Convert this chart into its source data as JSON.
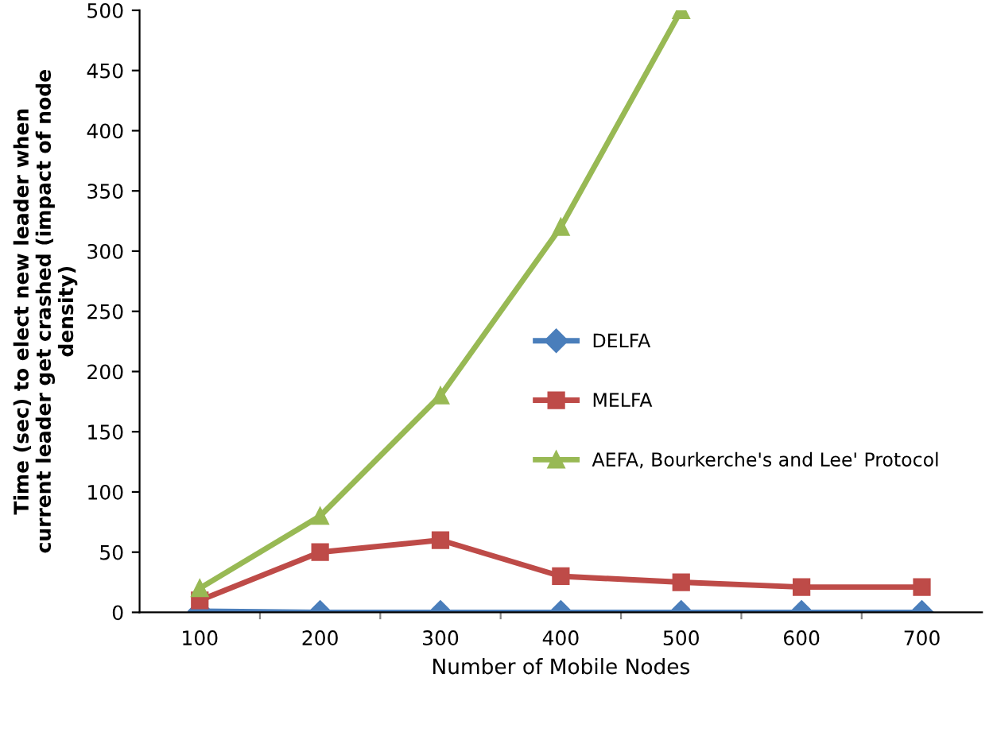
{
  "chart_data": {
    "type": "line",
    "xlabel": "Number of Mobile Nodes",
    "ylabel": "Time (sec) to elect new leader when\ncurrent leader get crashed (impact of node\ndensity)",
    "categories": [
      "100",
      "200",
      "300",
      "400",
      "500",
      "600",
      "700"
    ],
    "series": [
      {
        "name": "DELFA",
        "color": "#4a7ebb",
        "marker": "diamond",
        "values": [
          1,
          0,
          0,
          0,
          0,
          0,
          0
        ]
      },
      {
        "name": "MELFA",
        "color": "#be4b48",
        "marker": "square",
        "values": [
          10,
          50,
          60,
          30,
          25,
          21,
          21
        ]
      },
      {
        "name": "AEFA, Bourkerche's and Lee' Protocol",
        "color": "#98b954",
        "marker": "triangle",
        "values": [
          20,
          80,
          180,
          320,
          500,
          null,
          null
        ]
      }
    ],
    "ylim": [
      0,
      500
    ],
    "yticks": [
      0,
      50,
      100,
      150,
      200,
      250,
      300,
      350,
      400,
      450,
      500
    ],
    "grid": false,
    "legend": "right",
    "line_style": "solid"
  }
}
